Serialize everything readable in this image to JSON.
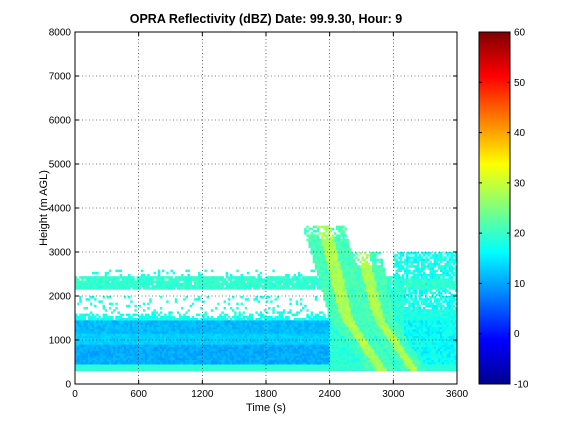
{
  "chart_data": {
    "type": "heatmap",
    "title": "OPRA Reflectivity (dBZ)  Date: 99.9.30, Hour: 9",
    "xlabel": "Time (s)",
    "ylabel": "Height (m AGL)",
    "xlim": [
      0,
      3600
    ],
    "ylim": [
      0,
      8000
    ],
    "xticks": [
      "0",
      "600",
      "1200",
      "1800",
      "2400",
      "3000",
      "3600"
    ],
    "yticks": [
      "0",
      "1000",
      "2000",
      "3000",
      "4000",
      "5000",
      "6000",
      "7000",
      "8000"
    ],
    "grid": true,
    "colorbar": {
      "colormap": "jet",
      "range": [
        -10,
        60
      ],
      "ticks": [
        "-10",
        "0",
        "10",
        "20",
        "30",
        "40",
        "50",
        "60"
      ]
    },
    "features": [
      {
        "name": "boundary layer echo",
        "x_range": [
          0,
          3600
        ],
        "height_range": [
          300,
          1700
        ],
        "dbz_range": [
          8,
          22
        ]
      },
      {
        "name": "elevated layer",
        "x_range": [
          0,
          3600
        ],
        "height_range": [
          2150,
          2450
        ],
        "dbz_range": [
          16,
          21
        ]
      },
      {
        "name": "convective cell 1",
        "x_range": [
          2400,
          2800
        ],
        "height_range": [
          300,
          3600
        ],
        "dbz_range": [
          18,
          30
        ]
      },
      {
        "name": "convective cell 2",
        "x_range": [
          2750,
          3050
        ],
        "height_range": [
          300,
          3000
        ],
        "dbz_range": [
          18,
          30
        ]
      },
      {
        "name": "post-storm echo top",
        "x_range": [
          3000,
          3600
        ],
        "height_range": [
          1500,
          3000
        ],
        "dbz_range": [
          14,
          22
        ]
      }
    ]
  }
}
